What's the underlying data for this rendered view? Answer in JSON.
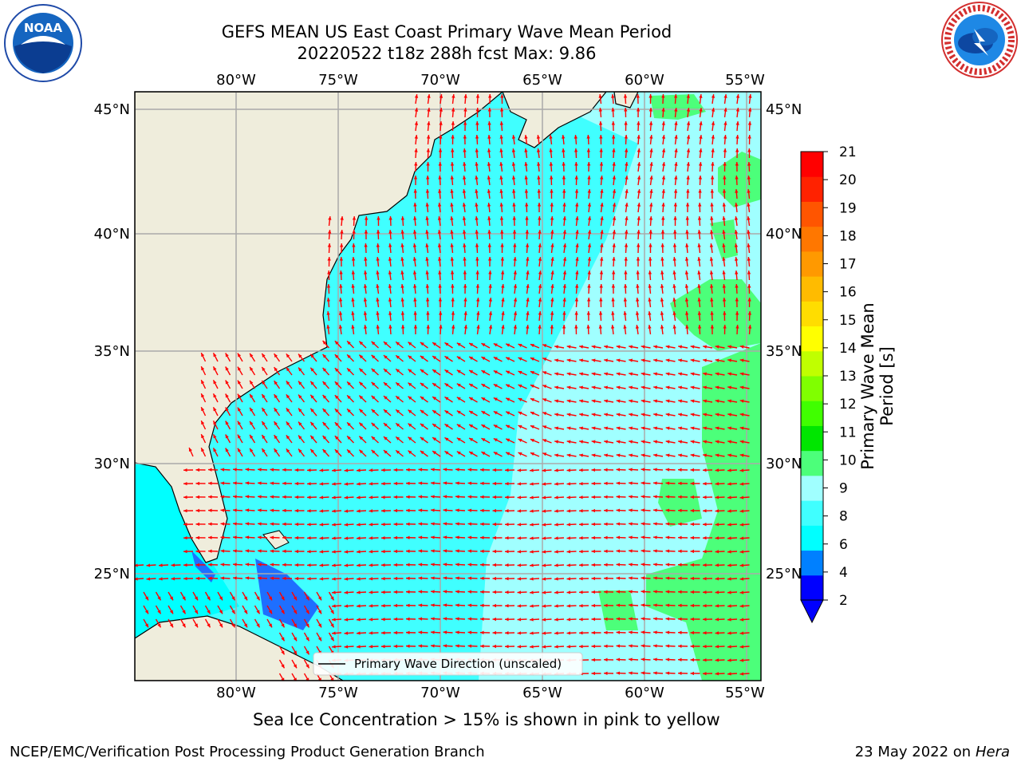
{
  "header": {
    "title_line1": "GEFS MEAN US East Coast Primary Wave Mean Period",
    "title_line2": "20220522 t18z 288h fcst   Max: 9.86"
  },
  "logos": {
    "left": "noaa-logo",
    "left_text": "NOAA",
    "left_ring_text": "NATIONAL OCEANIC AND ATMOSPHERIC ADMINISTRATION · U.S. DEPARTMENT OF COMMERCE",
    "right": "nws-logo",
    "right_ring_text": "NATIONAL WEATHER SERVICE"
  },
  "map": {
    "lon_ticks": [
      "80°W",
      "75°W",
      "70°W",
      "65°W",
      "60°W",
      "55°W"
    ],
    "lat_ticks": [
      "45°N",
      "40°N",
      "35°N",
      "30°N",
      "25°N"
    ],
    "legend_label": "Primary Wave Direction (unscaled)",
    "arrow_color": "#ff0000",
    "land_color": "#efeddc"
  },
  "colorbar": {
    "label": "Primary Wave Mean Period [s]",
    "ticks": [
      "21",
      "20",
      "19",
      "18",
      "17",
      "16",
      "15",
      "14",
      "13",
      "12",
      "11",
      "10",
      "9",
      "8",
      "6",
      "4",
      "2"
    ],
    "colors": [
      "#0000ff",
      "#0080ff",
      "#00ffff",
      "#40ffff",
      "#a0ffff",
      "#4cff7a",
      "#00e600",
      "#40ff00",
      "#80ff00",
      "#c0ff00",
      "#ffff00",
      "#ffdd00",
      "#ffbb00",
      "#ff9900",
      "#ff7700",
      "#ff5500",
      "#ff2200",
      "#ff0000"
    ]
  },
  "footer": {
    "ice_note": "Sea Ice Concentration > 15% is shown in pink to yellow",
    "left": "NCEP/EMC/Verification Post Processing Product Generation Branch",
    "right_date": "23 May 2022 on",
    "right_machine": "Hera"
  }
}
